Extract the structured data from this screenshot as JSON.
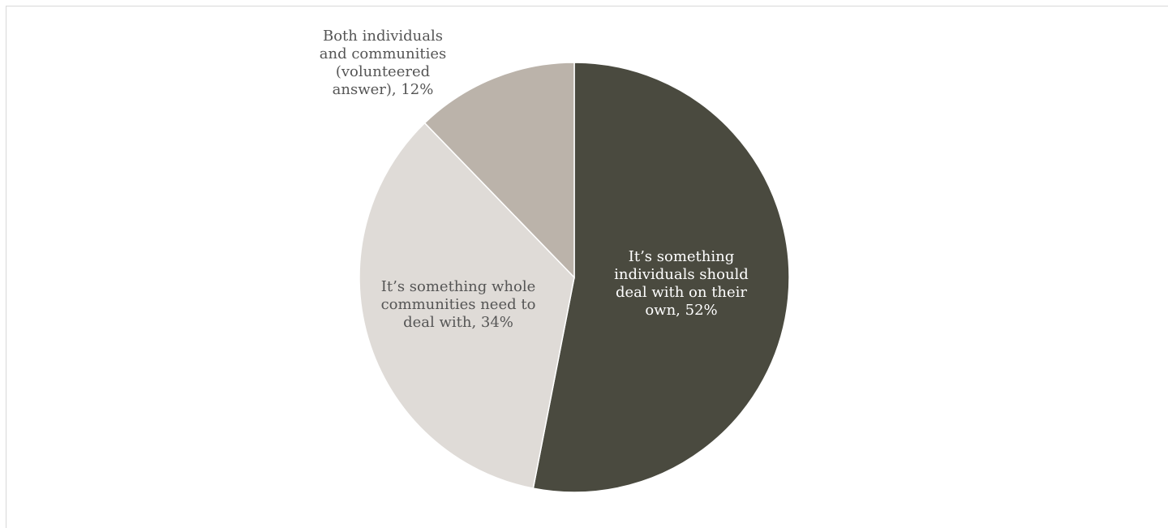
{
  "chart_data": {
    "type": "pie",
    "title": "",
    "start_angle_deg": 0,
    "direction": "clockwise",
    "slices": [
      {
        "label_lines": [
          "It’s something",
          "individuals should",
          "deal with on their",
          "own, 52%"
        ],
        "value": 52,
        "color": "#4a4a3f",
        "text_color": "#ffffff",
        "label_placement": "inside"
      },
      {
        "label_lines": [
          "It’s something whole",
          "communities need to",
          "deal with, 34%"
        ],
        "value": 34,
        "color": "#dfdbd7",
        "text_color": "#555555",
        "label_placement": "inside"
      },
      {
        "label_lines": [
          "Both individuals",
          "and communities",
          "(volunteered",
          "answer), 12%"
        ],
        "value": 12,
        "color": "#bbb3aa",
        "text_color": "#555555",
        "label_placement": "outside"
      }
    ]
  }
}
